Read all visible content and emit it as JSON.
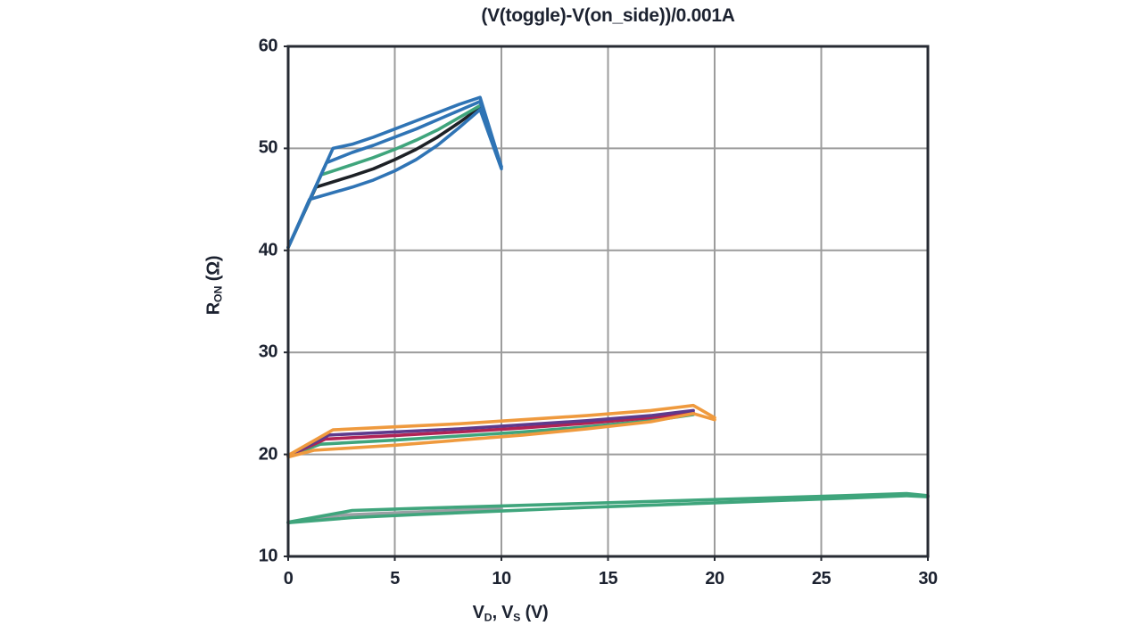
{
  "title": "(V(toggle)-V(on_side))/0.001A",
  "chart_data": {
    "type": "line",
    "title": "(V(toggle)-V(on_side))/0.001A",
    "xlabel_parts": [
      {
        "text": "V"
      },
      {
        "text": "D",
        "sub": true
      },
      {
        "text": ", V"
      },
      {
        "text": "S",
        "sub": true
      },
      {
        "text": " (V)"
      }
    ],
    "ylabel_parts": [
      {
        "text": "R"
      },
      {
        "text": "ON",
        "sub": true
      },
      {
        "text": " (Ω)"
      }
    ],
    "xlim": [
      0,
      30
    ],
    "ylim": [
      10,
      60
    ],
    "xticks": [
      "0",
      "5",
      "10",
      "15",
      "20",
      "25",
      "30"
    ],
    "xtick_values": [
      0,
      5,
      10,
      15,
      20,
      25,
      30
    ],
    "yticks": [
      "10",
      "20",
      "30",
      "40",
      "50",
      "60"
    ],
    "ytick_values": [
      10,
      20,
      30,
      40,
      50,
      60
    ],
    "grid": true,
    "legend": "none",
    "palette": {
      "grid": "#9c9c9c",
      "axis": "#272b33",
      "text": "#1c2230",
      "blue": "#2f74b5",
      "green": "#3fa57c",
      "black": "#1d2126",
      "orange": "#ef9a3e",
      "purple": "#5d3a8c",
      "crimson": "#b02355",
      "gray": "#9aa0a4"
    },
    "series": [
      {
        "name": "bottom-cluster-gray",
        "color": "#9aa0a4",
        "points": [
          [
            0,
            13.3
          ],
          [
            2.5,
            14.05
          ],
          [
            6,
            14.35
          ],
          [
            10,
            14.7
          ]
        ]
      },
      {
        "name": "bottom-cluster-green-lower",
        "color": "#3fa57c",
        "points": [
          [
            0,
            13.3
          ],
          [
            3,
            13.8
          ],
          [
            6,
            14.1
          ],
          [
            10,
            14.45
          ],
          [
            14,
            14.8
          ],
          [
            18,
            15.1
          ],
          [
            22,
            15.4
          ],
          [
            26,
            15.7
          ],
          [
            29,
            15.95
          ],
          [
            30,
            15.85
          ]
        ]
      },
      {
        "name": "bottom-cluster-green-upper",
        "color": "#3fa57c",
        "points": [
          [
            0,
            13.35
          ],
          [
            3,
            14.5
          ],
          [
            6,
            14.7
          ],
          [
            10,
            14.95
          ],
          [
            14,
            15.2
          ],
          [
            18,
            15.45
          ],
          [
            22,
            15.7
          ],
          [
            26,
            15.95
          ],
          [
            29,
            16.15
          ],
          [
            30,
            15.95
          ]
        ]
      },
      {
        "name": "mid-cluster-green",
        "color": "#3fa57c",
        "points": [
          [
            0,
            19.85
          ],
          [
            1.5,
            21.0
          ],
          [
            5,
            21.4
          ],
          [
            8,
            21.8
          ],
          [
            11,
            22.2
          ],
          [
            14,
            22.7
          ],
          [
            17,
            23.3
          ],
          [
            19,
            23.9
          ]
        ]
      },
      {
        "name": "mid-cluster-crimson",
        "color": "#b02355",
        "points": [
          [
            0,
            19.85
          ],
          [
            1.75,
            21.5
          ],
          [
            5,
            21.85
          ],
          [
            8,
            22.2
          ],
          [
            11,
            22.6
          ],
          [
            14,
            23.05
          ],
          [
            17,
            23.6
          ],
          [
            19,
            24.1
          ]
        ]
      },
      {
        "name": "mid-cluster-purple",
        "color": "#5d3a8c",
        "points": [
          [
            0,
            19.85
          ],
          [
            1.9,
            21.9
          ],
          [
            5,
            22.2
          ],
          [
            8,
            22.5
          ],
          [
            11,
            22.9
          ],
          [
            14,
            23.3
          ],
          [
            17,
            23.8
          ],
          [
            19,
            24.3
          ]
        ]
      },
      {
        "name": "mid-cluster-orange-lower",
        "color": "#ef9a3e",
        "points": [
          [
            0,
            19.75
          ],
          [
            1.2,
            20.4
          ],
          [
            5,
            20.9
          ],
          [
            8,
            21.4
          ],
          [
            11,
            21.9
          ],
          [
            14,
            22.5
          ],
          [
            17,
            23.2
          ],
          [
            19,
            24.0
          ],
          [
            20,
            23.4
          ]
        ]
      },
      {
        "name": "mid-cluster-orange-upper",
        "color": "#ef9a3e",
        "points": [
          [
            0,
            19.9
          ],
          [
            2.1,
            22.4
          ],
          [
            5,
            22.7
          ],
          [
            8,
            23.0
          ],
          [
            11,
            23.4
          ],
          [
            14,
            23.8
          ],
          [
            17,
            24.3
          ],
          [
            19,
            24.8
          ],
          [
            20,
            23.6
          ]
        ]
      },
      {
        "name": "top-cluster-black",
        "color": "#1d2126",
        "points": [
          [
            0,
            40.3
          ],
          [
            1.3,
            46.2
          ],
          [
            3,
            47.3
          ],
          [
            4,
            48.0
          ],
          [
            5,
            48.9
          ],
          [
            6,
            49.9
          ],
          [
            7,
            51.1
          ],
          [
            8,
            52.5
          ],
          [
            9,
            54.0
          ]
        ]
      },
      {
        "name": "top-cluster-green",
        "color": "#3fa57c",
        "points": [
          [
            0,
            40.3
          ],
          [
            1.55,
            47.4
          ],
          [
            3,
            48.4
          ],
          [
            4,
            49.1
          ],
          [
            5,
            49.9
          ],
          [
            6,
            50.8
          ],
          [
            7,
            51.8
          ],
          [
            8,
            53.0
          ],
          [
            9,
            54.2
          ]
        ]
      },
      {
        "name": "top-cluster-blue-lower",
        "color": "#2f74b5",
        "points": [
          [
            0,
            40.3
          ],
          [
            1.0,
            45.0
          ],
          [
            3,
            46.2
          ],
          [
            4,
            46.9
          ],
          [
            5,
            47.8
          ],
          [
            6,
            48.9
          ],
          [
            7,
            50.3
          ],
          [
            8,
            52.0
          ],
          [
            9,
            53.8
          ],
          [
            10,
            48.0
          ]
        ]
      },
      {
        "name": "top-cluster-blue-mid",
        "color": "#2f74b5",
        "points": [
          [
            0,
            40.3
          ],
          [
            1.8,
            48.6
          ],
          [
            3,
            49.6
          ],
          [
            4,
            50.3
          ],
          [
            5,
            51.1
          ],
          [
            6,
            51.9
          ],
          [
            7,
            52.8
          ],
          [
            8,
            53.7
          ],
          [
            9,
            54.6
          ],
          [
            10,
            48.2
          ]
        ]
      },
      {
        "name": "top-cluster-blue-upper",
        "color": "#2f74b5",
        "points": [
          [
            0,
            40.3
          ],
          [
            2.1,
            50.0
          ],
          [
            3,
            50.4
          ],
          [
            4,
            51.1
          ],
          [
            5,
            51.9
          ],
          [
            6,
            52.7
          ],
          [
            7,
            53.5
          ],
          [
            8,
            54.3
          ],
          [
            9,
            55.0
          ],
          [
            10,
            48.2
          ]
        ]
      }
    ]
  }
}
